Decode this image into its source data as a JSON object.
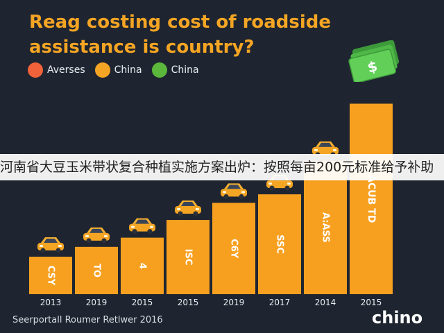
{
  "title": "Reag costing cost of roadside assistance is country?",
  "legend": [
    {
      "label": "Averses",
      "color": "#f0623a"
    },
    {
      "label": "China",
      "color": "#f5a524"
    },
    {
      "label": "China",
      "color": "#5cb83c"
    }
  ],
  "banner_text": "河南省大豆玉米带状复合种植实施方案出炉：按照每亩200元标准给予补助",
  "footer_text": "Seerportall Roumer Retlwer 2016",
  "logo_text": "chino",
  "money_symbol": "$",
  "chart_data": {
    "type": "bar",
    "categories": [
      "2013",
      "2019",
      "2015",
      "2015",
      "2019",
      "2017",
      "2014",
      "2015"
    ],
    "values": [
      57,
      72,
      86,
      113,
      139,
      152,
      203,
      290
    ],
    "bar_labels": [
      "CSY",
      "TO",
      "4",
      "ISC",
      "C6Y",
      "SSC",
      "A:ASS",
      "ACUB TD"
    ],
    "ylim": [
      0,
      300
    ],
    "colors": {
      "bar": "#f7a020",
      "car": "#f5a524",
      "label": "#ffffff"
    }
  }
}
